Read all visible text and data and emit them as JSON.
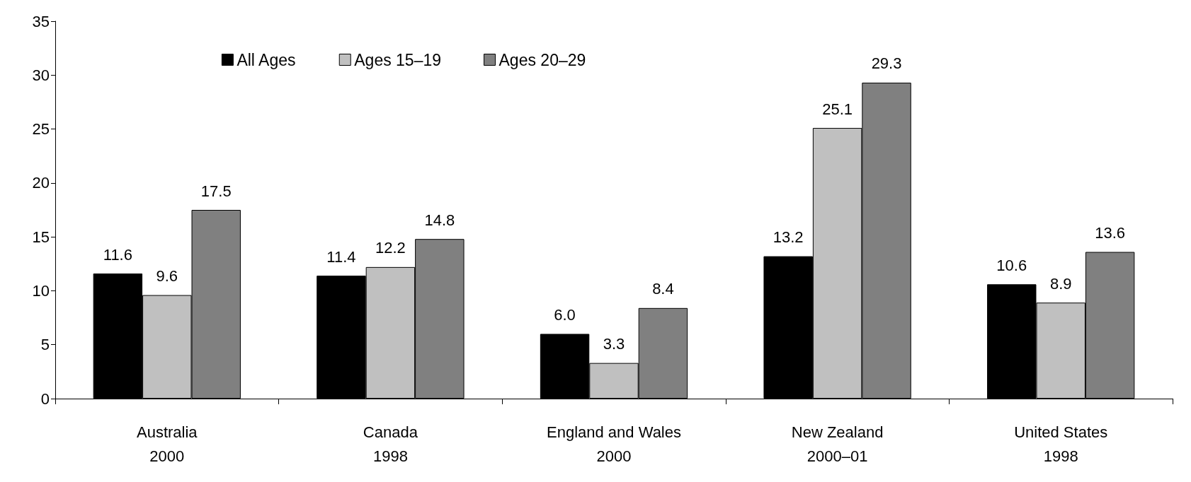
{
  "chart_data": {
    "type": "bar",
    "categories": [
      "Australia\n2000",
      "Canada\n1998",
      "England and Wales\n2000",
      "New Zealand\n2000–01",
      "United States\n1998"
    ],
    "series": [
      {
        "name": "All Ages",
        "color": "#000000",
        "values": [
          11.6,
          11.4,
          6.0,
          13.2,
          10.6
        ],
        "value_labels": [
          "11.6",
          "11.4",
          "6.0",
          "13.2",
          "10.6"
        ]
      },
      {
        "name": "Ages 15–19",
        "color": "#c0c0c0",
        "values": [
          9.6,
          12.2,
          3.3,
          25.1,
          8.9
        ],
        "value_labels": [
          "9.6",
          "12.2",
          "3.3",
          "25.1",
          "8.9"
        ]
      },
      {
        "name": "Ages 20–29",
        "color": "#808080",
        "values": [
          17.5,
          14.8,
          8.4,
          29.3,
          13.6
        ],
        "value_labels": [
          "17.5",
          "14.8",
          "8.4",
          "29.3",
          "13.6"
        ]
      }
    ],
    "ylim": [
      0,
      35
    ],
    "yticks": [
      0,
      5,
      10,
      15,
      20,
      25,
      30,
      35
    ],
    "grid": false,
    "legend": "top"
  }
}
